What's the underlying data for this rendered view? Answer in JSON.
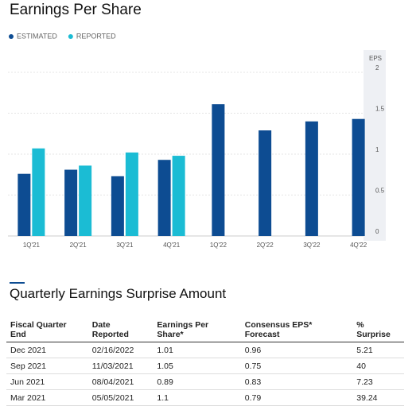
{
  "chart_data": {
    "type": "bar",
    "title": "Earnings Per Share",
    "y_label": "EPS",
    "categories": [
      "1Q'21",
      "2Q'21",
      "3Q'21",
      "4Q'21",
      "1Q'22",
      "2Q'22",
      "3Q'22",
      "4Q'22"
    ],
    "series": [
      {
        "name": "ESTIMATED",
        "color": "#0d4c92",
        "values": [
          0.76,
          0.81,
          0.73,
          0.93,
          1.61,
          1.29,
          1.4,
          1.43
        ]
      },
      {
        "name": "REPORTED",
        "color": "#1bbcd4",
        "values": [
          1.07,
          0.86,
          1.02,
          0.98,
          null,
          null,
          null,
          null
        ]
      }
    ],
    "ylim": [
      0,
      2
    ],
    "yticks": [
      0,
      0.5,
      1,
      1.5,
      2
    ],
    "grid": true
  },
  "table": {
    "title": "Quarterly Earnings Surprise Amount",
    "columns": [
      "Fiscal Quarter End",
      "Date Reported",
      "Earnings Per Share*",
      "Consensus EPS* Forecast",
      "% Surprise"
    ],
    "rows": [
      [
        "Dec 2021",
        "02/16/2022",
        1.01,
        0.96,
        5.21
      ],
      [
        "Sep 2021",
        "11/03/2021",
        1.05,
        0.75,
        40
      ],
      [
        "Jun 2021",
        "08/04/2021",
        0.89,
        0.83,
        7.23
      ],
      [
        "Mar 2021",
        "05/05/2021",
        1.1,
        0.79,
        39.24
      ]
    ]
  }
}
